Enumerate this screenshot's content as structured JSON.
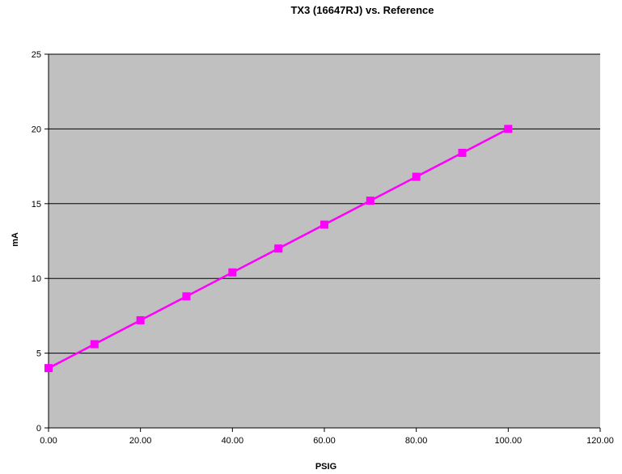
{
  "chart_data": {
    "type": "line",
    "title": "TX3 (16647RJ) vs. Reference",
    "xlabel": "PSIG",
    "ylabel": "mA",
    "xlim": [
      0,
      120
    ],
    "ylim": [
      0,
      25
    ],
    "x_ticks": [
      "0.00",
      "20.00",
      "40.00",
      "60.00",
      "80.00",
      "100.00",
      "120.00"
    ],
    "x_tick_values": [
      0,
      20,
      40,
      60,
      80,
      100,
      120
    ],
    "y_ticks": [
      "0",
      "5",
      "10",
      "15",
      "20",
      "25"
    ],
    "y_tick_values": [
      0,
      5,
      10,
      15,
      20,
      25
    ],
    "grid": "horizontal",
    "legend": "none",
    "plot_background": "#c0c0c0",
    "series": [
      {
        "color": "#000080",
        "marker": "diamond",
        "x": [
          0,
          10,
          20,
          30,
          40,
          50,
          60,
          70,
          80,
          90,
          100
        ],
        "values": [
          4.0,
          5.6,
          7.2,
          8.8,
          10.4,
          12.0,
          13.6,
          15.2,
          16.8,
          18.4,
          20.0
        ]
      },
      {
        "color": "#ff00ff",
        "marker": "square",
        "x": [
          0,
          10,
          20,
          30,
          40,
          50,
          60,
          70,
          80,
          90,
          100
        ],
        "values": [
          4.0,
          5.6,
          7.2,
          8.8,
          10.4,
          12.0,
          13.6,
          15.2,
          16.8,
          18.4,
          20.0
        ]
      }
    ]
  }
}
